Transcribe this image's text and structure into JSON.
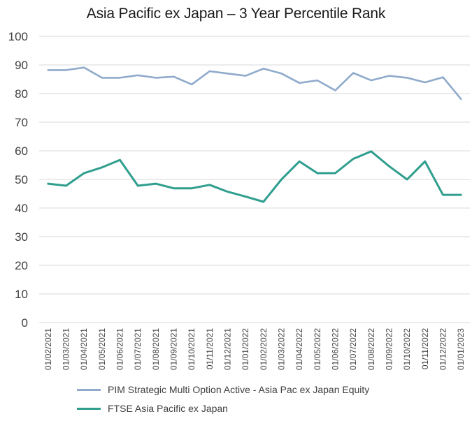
{
  "chart_data": {
    "type": "line",
    "title": "Asia Pacific ex Japan – 3 Year Percentile Rank",
    "xlabel": "",
    "ylabel": "",
    "ylim": [
      0,
      100
    ],
    "yticks": [
      0,
      10,
      20,
      30,
      40,
      50,
      60,
      70,
      80,
      90,
      100
    ],
    "grid": true,
    "legend_position": "bottom",
    "categories": [
      "01/02/2021",
      "01/03/2021",
      "01/04/2021",
      "01/05/2021",
      "01/06/2021",
      "01/07/2021",
      "01/08/2021",
      "01/09/2021",
      "01/10/2021",
      "01/11/2021",
      "01/12/2021",
      "01/01/2022",
      "01/02/2022",
      "01/03/2022",
      "01/04/2022",
      "01/05/2022",
      "01/06/2022",
      "01/07/2022",
      "01/08/2022",
      "01/09/2022",
      "01/10/2022",
      "01/11/2022",
      "01/12/2022",
      "01/01/2023"
    ],
    "series": [
      {
        "name": "PIM Strategic Multi Option Active - Asia Pac ex Japan Equity",
        "color": "#8faacb",
        "values": [
          88.2,
          88.2,
          89.1,
          85.5,
          85.5,
          86.4,
          85.5,
          85.9,
          83.2,
          87.8,
          87.0,
          86.2,
          88.7,
          87.0,
          83.7,
          84.6,
          81.1,
          87.2,
          84.6,
          86.2,
          85.5,
          83.9,
          85.7,
          78.1
        ]
      },
      {
        "name": "FTSE Asia Pacific ex Japan",
        "color": "#2f9e8e",
        "values": [
          48.5,
          47.8,
          52.2,
          54.2,
          56.8,
          47.8,
          48.5,
          46.9,
          46.9,
          48.1,
          45.7,
          44.0,
          42.2,
          50.0,
          56.3,
          52.2,
          52.2,
          57.2,
          59.8,
          54.6,
          50.0,
          56.3,
          44.6,
          44.6
        ]
      }
    ]
  }
}
